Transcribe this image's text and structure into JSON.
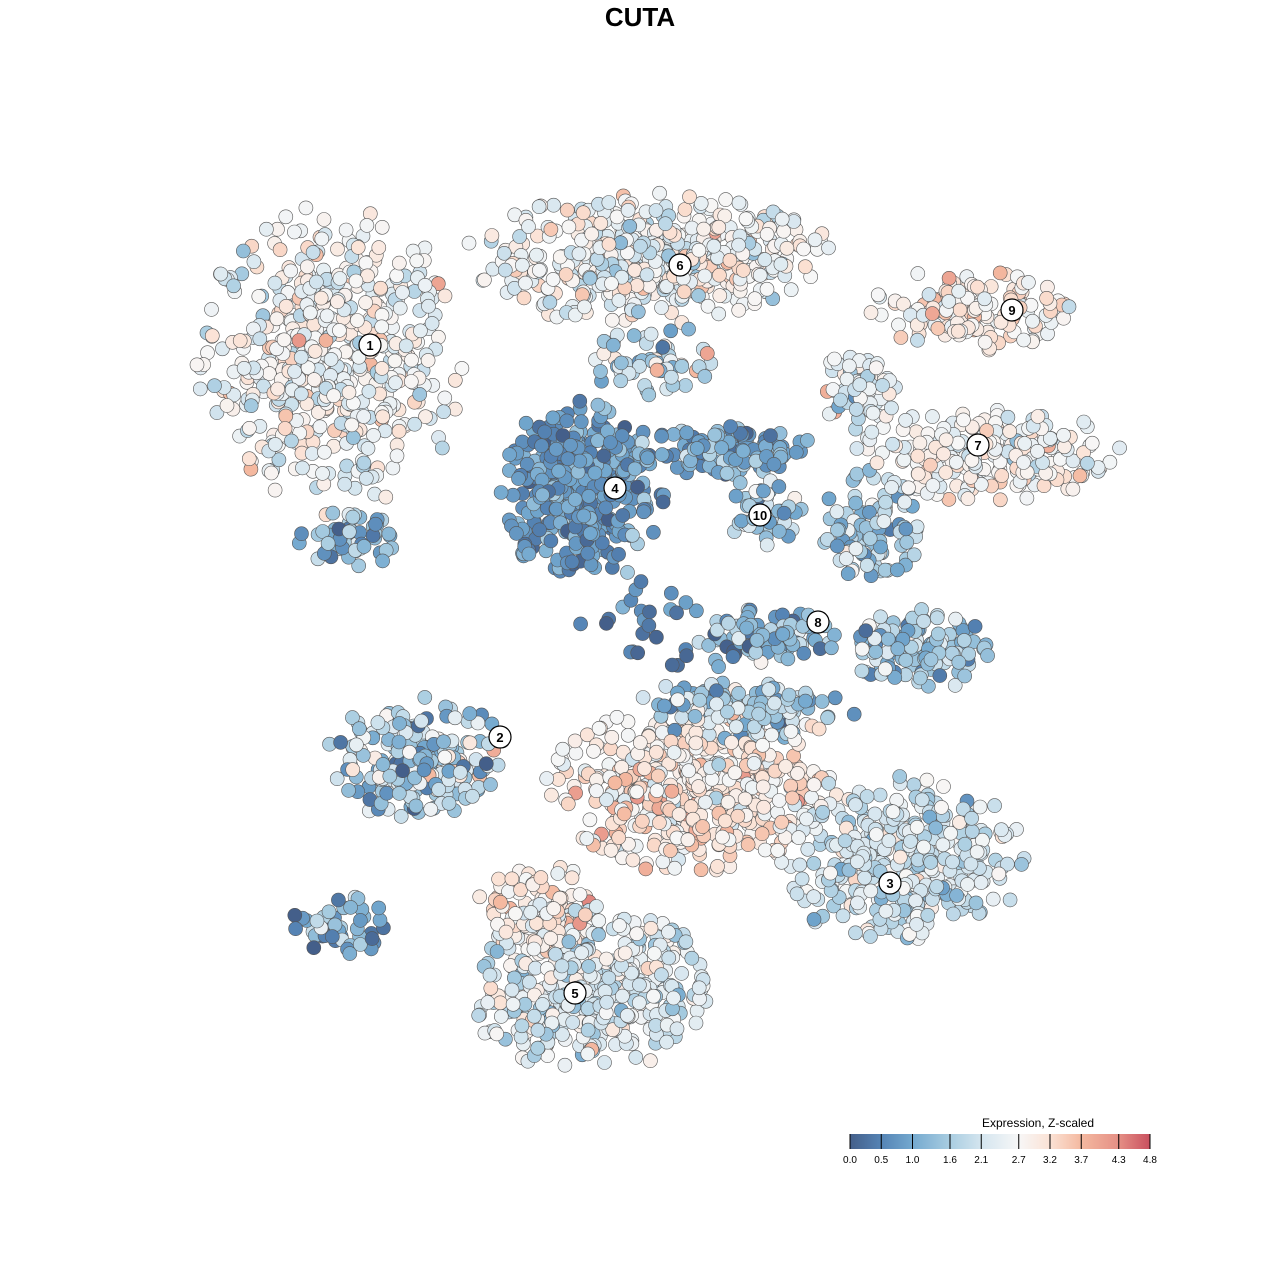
{
  "chart_data": {
    "type": "scatter",
    "title": "CUTA",
    "xlabel": "",
    "ylabel": "",
    "axes_visible": false,
    "grid": false,
    "xlim": [
      -22,
      25
    ],
    "ylim": [
      -23,
      23
    ],
    "point_colors_by": "expression",
    "legend": {
      "title": "Expression, Z-scaled",
      "placement": "bottom-right",
      "ticks": [
        "0.0",
        "0.5",
        "1.0",
        "1.6",
        "2.1",
        "2.7",
        "3.2",
        "3.7",
        "4.3",
        "4.8"
      ],
      "tick_values": [
        0.0,
        0.5,
        1.0,
        1.6,
        2.1,
        2.7,
        3.2,
        3.7,
        4.3,
        4.8
      ],
      "range": [
        0.0,
        4.8
      ],
      "colors": [
        {
          "v": 0.0,
          "c": "#445f8a"
        },
        {
          "v": 0.5,
          "c": "#5584b5"
        },
        {
          "v": 1.0,
          "c": "#74a9cf"
        },
        {
          "v": 1.6,
          "c": "#a9cde1"
        },
        {
          "v": 2.1,
          "c": "#d4e5ef"
        },
        {
          "v": 2.7,
          "c": "#f7f7f7"
        },
        {
          "v": 3.2,
          "c": "#fbe2d5"
        },
        {
          "v": 3.7,
          "c": "#f4b9a0"
        },
        {
          "v": 4.3,
          "c": "#e58f85"
        },
        {
          "v": 4.8,
          "c": "#c9505f"
        }
      ]
    },
    "cluster_labels": [
      {
        "label": "1",
        "x": -13.5,
        "y": 14.75
      },
      {
        "label": "6",
        "x": 2.0,
        "y": 18.75
      },
      {
        "label": "9",
        "x": 18.6,
        "y": 16.5
      },
      {
        "label": "7",
        "x": 16.9,
        "y": 9.75
      },
      {
        "label": "4",
        "x": -1.25,
        "y": 7.6
      },
      {
        "label": "10",
        "x": 6.0,
        "y": 6.25
      },
      {
        "label": "8",
        "x": 8.9,
        "y": 0.9
      },
      {
        "label": "2",
        "x": -7.0,
        "y": -4.85
      },
      {
        "label": "3",
        "x": 12.5,
        "y": -12.15
      },
      {
        "label": "5",
        "x": -3.25,
        "y": -17.65
      }
    ],
    "point_groups": [
      {
        "cx": -15.5,
        "cy": 14,
        "rx": 6.5,
        "ry": 7.5,
        "n": 550,
        "mean_expr": 2.6,
        "sd_expr": 0.5
      },
      {
        "cx": -14.5,
        "cy": 5,
        "rx": 2.5,
        "ry": 1.5,
        "n": 60,
        "mean_expr": 1.3,
        "sd_expr": 0.6
      },
      {
        "cx": 0.5,
        "cy": 19,
        "rx": 9,
        "ry": 3.2,
        "n": 500,
        "mean_expr": 2.6,
        "sd_expr": 0.5
      },
      {
        "cx": 0.5,
        "cy": 14,
        "rx": 3.5,
        "ry": 2,
        "n": 60,
        "mean_expr": 1.8,
        "sd_expr": 0.8
      },
      {
        "cx": 16.5,
        "cy": 16.5,
        "rx": 5,
        "ry": 2,
        "n": 150,
        "mean_expr": 2.9,
        "sd_expr": 0.4
      },
      {
        "cx": 17.5,
        "cy": 9.25,
        "rx": 6.5,
        "ry": 2.25,
        "n": 230,
        "mean_expr": 2.7,
        "sd_expr": 0.45
      },
      {
        "cx": 11,
        "cy": 12.5,
        "rx": 2,
        "ry": 2,
        "n": 60,
        "mean_expr": 2.4,
        "sd_expr": 0.6
      },
      {
        "cx": -3,
        "cy": 7.5,
        "rx": 4,
        "ry": 4.25,
        "n": 450,
        "mean_expr": 0.8,
        "sd_expr": 0.4
      },
      {
        "cx": 4,
        "cy": 9.5,
        "rx": 4.5,
        "ry": 1.25,
        "n": 120,
        "mean_expr": 0.9,
        "sd_expr": 0.5
      },
      {
        "cx": 6.25,
        "cy": 6.5,
        "rx": 1.75,
        "ry": 2,
        "n": 50,
        "mean_expr": 1.6,
        "sd_expr": 0.6
      },
      {
        "cx": 11.5,
        "cy": 5.5,
        "rx": 2.5,
        "ry": 3,
        "n": 100,
        "mean_expr": 1.7,
        "sd_expr": 0.6
      },
      {
        "cx": 14,
        "cy": -0.5,
        "rx": 3.5,
        "ry": 2,
        "n": 120,
        "mean_expr": 1.5,
        "sd_expr": 0.6
      },
      {
        "cx": 6,
        "cy": 0,
        "rx": 4,
        "ry": 1.5,
        "n": 100,
        "mean_expr": 1.1,
        "sd_expr": 0.6
      },
      {
        "cx": -11,
        "cy": -6,
        "rx": 4.5,
        "ry": 3,
        "n": 230,
        "mean_expr": 1.7,
        "sd_expr": 0.8
      },
      {
        "cx": 2.5,
        "cy": -7.5,
        "rx": 7,
        "ry": 4,
        "n": 500,
        "mean_expr": 3.0,
        "sd_expr": 0.45
      },
      {
        "cx": 5,
        "cy": -3.5,
        "rx": 5.5,
        "ry": 1.5,
        "n": 150,
        "mean_expr": 1.8,
        "sd_expr": 0.7
      },
      {
        "cx": 13,
        "cy": -11,
        "rx": 6,
        "ry": 4,
        "n": 380,
        "mean_expr": 2.1,
        "sd_expr": 0.5
      },
      {
        "cx": -2.5,
        "cy": -17.5,
        "rx": 6,
        "ry": 4,
        "n": 450,
        "mean_expr": 2.3,
        "sd_expr": 0.5
      },
      {
        "cx": -5,
        "cy": -13.5,
        "rx": 3,
        "ry": 2.5,
        "n": 120,
        "mean_expr": 3.0,
        "sd_expr": 0.5
      },
      {
        "cx": -15,
        "cy": -14.25,
        "rx": 2.5,
        "ry": 1.5,
        "n": 45,
        "mean_expr": 0.9,
        "sd_expr": 0.6
      },
      {
        "cx": 0,
        "cy": 1,
        "rx": 3,
        "ry": 3,
        "n": 25,
        "mean_expr": 0.5,
        "sd_expr": 0.4
      }
    ]
  }
}
